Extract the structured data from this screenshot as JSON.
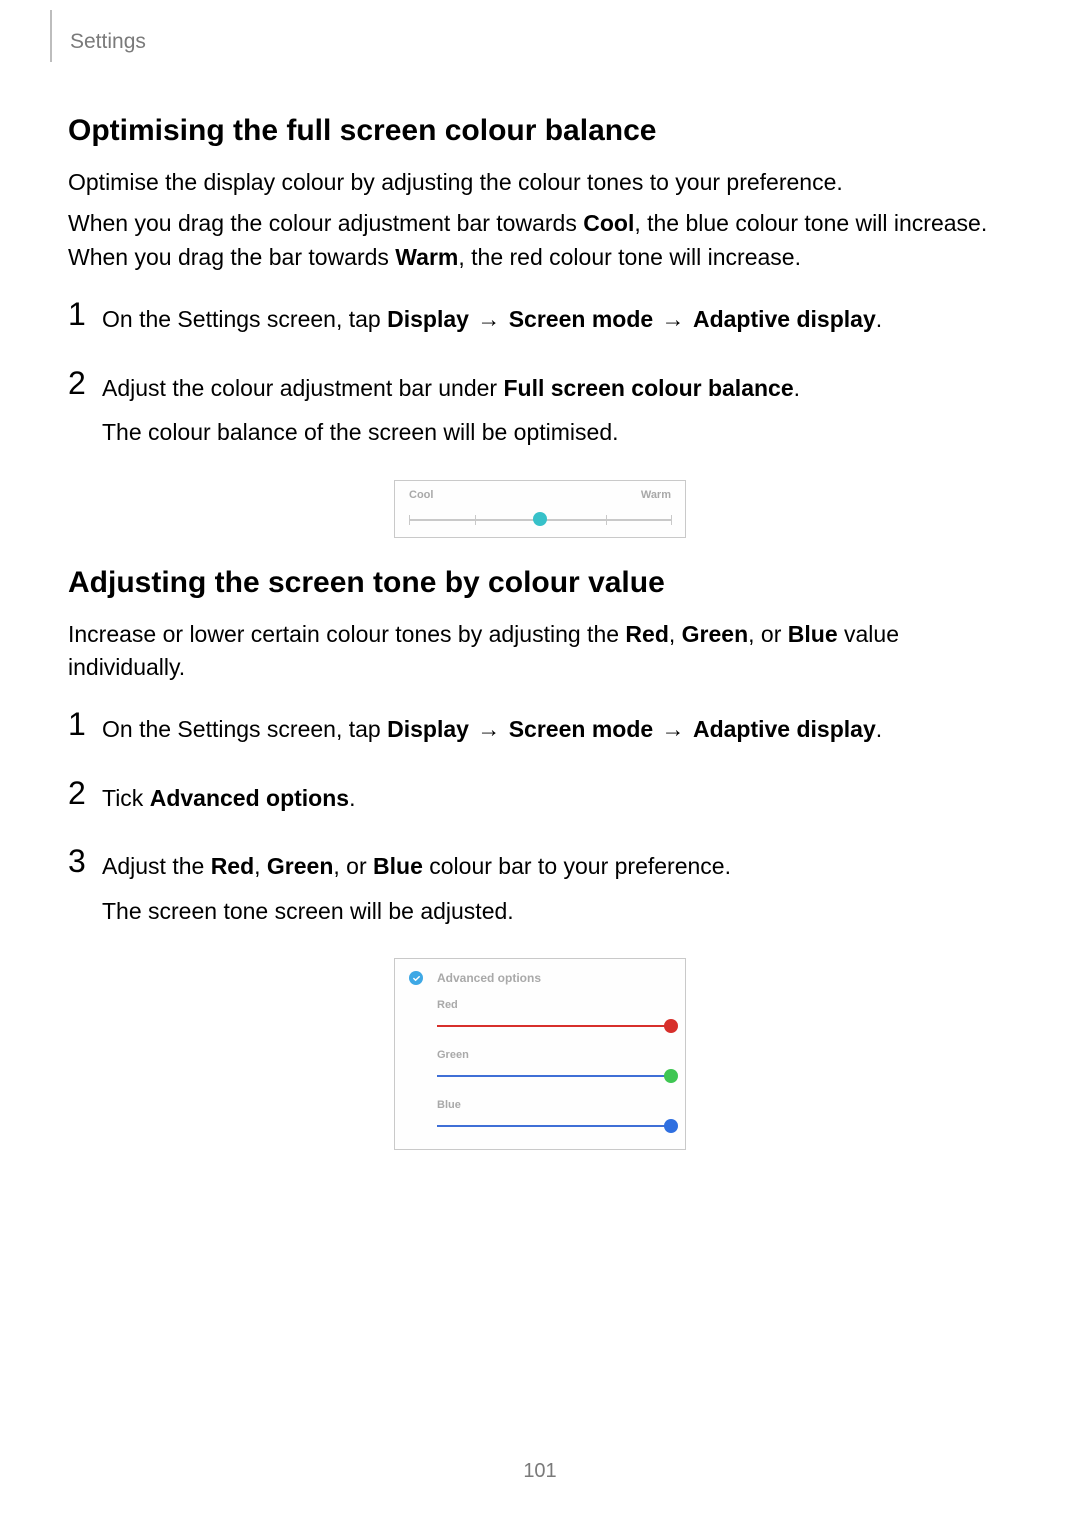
{
  "header": {
    "section": "Settings"
  },
  "section1": {
    "title": "Optimising the full screen colour balance",
    "intro": "Optimise the display colour by adjusting the colour tones to your preference.",
    "para2_pre": "When you drag the colour adjustment bar towards ",
    "para2_b1": "Cool",
    "para2_mid": ", the blue colour tone will increase. When you drag the bar towards ",
    "para2_b2": "Warm",
    "para2_post": ", the red colour tone will increase.",
    "steps": {
      "n1": "1",
      "s1_pre": "On the Settings screen, tap ",
      "s1_b1": "Display",
      "s1_arrow1": " → ",
      "s1_b2": "Screen mode",
      "s1_arrow2": " → ",
      "s1_b3": "Adaptive display",
      "s1_post": ".",
      "n2": "2",
      "s2_pre": "Adjust the colour adjustment bar under ",
      "s2_b1": "Full screen colour balance",
      "s2_post": ".",
      "s2_line2": "The colour balance of the screen will be optimised."
    }
  },
  "fig1": {
    "left_label": "Cool",
    "right_label": "Warm",
    "track_color": "#c9c9c9",
    "knob_color": "#37c1c9",
    "knob_pos_pct": 50,
    "ticks_pct": [
      0,
      25,
      75,
      100
    ]
  },
  "section2": {
    "title": "Adjusting the screen tone by colour value",
    "intro_pre": "Increase or lower certain colour tones by adjusting the ",
    "intro_b1": "Red",
    "intro_sep1": ", ",
    "intro_b2": "Green",
    "intro_sep2": ", or ",
    "intro_b3": "Blue",
    "intro_post": " value individually.",
    "steps": {
      "n1": "1",
      "s1_pre": "On the Settings screen, tap ",
      "s1_b1": "Display",
      "s1_arrow1": " → ",
      "s1_b2": "Screen mode",
      "s1_arrow2": " → ",
      "s1_b3": "Adaptive display",
      "s1_post": ".",
      "n2": "2",
      "s2_pre": "Tick ",
      "s2_b1": "Advanced options",
      "s2_post": ".",
      "n3": "3",
      "s3_pre": "Adjust the ",
      "s3_b1": "Red",
      "s3_sep1": ", ",
      "s3_b2": "Green",
      "s3_sep2": ", or ",
      "s3_b3": "Blue",
      "s3_post": " colour bar to your preference.",
      "s3_line2": "The screen tone screen will be adjusted."
    }
  },
  "fig2": {
    "check_bg": "#3ea8e5",
    "title": "Advanced options",
    "rows": [
      {
        "label": "Red",
        "line_color": "#d72f2b",
        "dot_color": "#d72f2b"
      },
      {
        "label": "Green",
        "line_color": "#3f6fd6",
        "dot_color": "#3fc653"
      },
      {
        "label": "Blue",
        "line_color": "#3f6fd6",
        "dot_color": "#2f6fe0"
      }
    ]
  },
  "page_number": "101"
}
